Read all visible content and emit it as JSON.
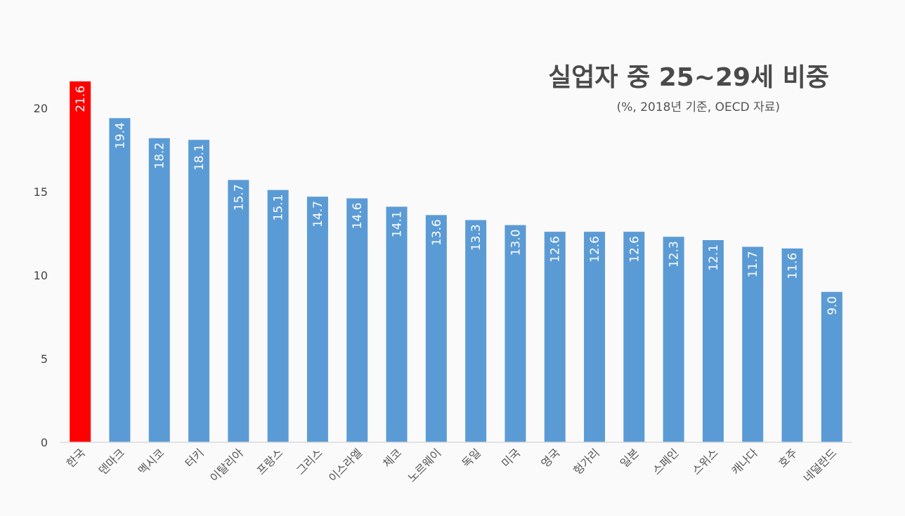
{
  "chart_data": {
    "type": "bar",
    "title": "실업자 중 25~29세 비중",
    "subtitle": "(%, 2018년 기준, OECD 자료)",
    "xlabel": "",
    "ylabel": "",
    "ylim": [
      0,
      22
    ],
    "yticks": [
      0,
      5,
      10,
      15,
      20
    ],
    "grid": false,
    "categories": [
      "한국",
      "덴마크",
      "멕시코",
      "터키",
      "이탈리아",
      "프랑스",
      "그리스",
      "이스라엘",
      "체코",
      "노르웨이",
      "독일",
      "미국",
      "영국",
      "헝가리",
      "일본",
      "스페인",
      "스위스",
      "캐나다",
      "호주",
      "네덜란드"
    ],
    "values": [
      21.6,
      19.4,
      18.2,
      18.1,
      15.7,
      15.1,
      14.7,
      14.6,
      14.1,
      13.6,
      13.3,
      13.0,
      12.6,
      12.6,
      12.6,
      12.3,
      12.1,
      11.7,
      11.6,
      9.0
    ],
    "data_labels": [
      "21.6",
      "19.4",
      "18.2",
      "18.1",
      "15.7",
      "15.1",
      "14.7",
      "14.6",
      "14.1",
      "13.6",
      "13.3",
      "13.0",
      "12.6",
      "12.6",
      "12.6",
      "12.3",
      "12.1",
      "11.7",
      "11.6",
      "9.0"
    ],
    "colors": {
      "highlight": "#ff0000",
      "default": "#5b9bd5",
      "axis": "#d9d9d9"
    },
    "highlight_index": 0
  }
}
